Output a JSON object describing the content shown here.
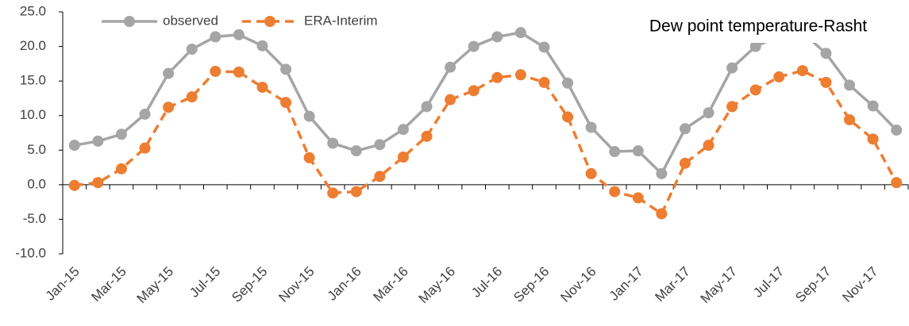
{
  "chart_data": {
    "type": "line",
    "title": "Dew point temperature-Rasht",
    "categories": [
      "Jan-15",
      null,
      "Mar-15",
      null,
      "May-15",
      null,
      "Jul-15",
      null,
      "Sep-15",
      null,
      "Nov-15",
      null,
      "Jan-16",
      null,
      "Mar-16",
      null,
      "May-16",
      null,
      "Jul-16",
      null,
      "Sep-16",
      null,
      "Nov-16",
      null,
      "Jan-17",
      null,
      "Mar-17",
      null,
      "May-17",
      null,
      "Jul-17",
      null,
      "Sep-17",
      null,
      "Nov-17",
      null
    ],
    "series": [
      {
        "name": "observed",
        "color": "#a5a5a5",
        "dashed": false,
        "values": [
          5.7,
          6.3,
          7.3,
          10.2,
          16.1,
          19.6,
          21.4,
          21.7,
          20.1,
          16.7,
          9.9,
          6.0,
          4.9,
          5.8,
          8.0,
          11.3,
          17.0,
          20.0,
          21.4,
          22.0,
          19.9,
          14.7,
          8.3,
          4.8,
          4.9,
          1.6,
          8.1,
          10.4,
          16.9,
          20.0,
          21.5,
          22.0,
          19.0,
          14.4,
          11.4,
          7.9
        ]
      },
      {
        "name": "ERA-Interim",
        "color": "#ed7d31",
        "dashed": true,
        "values": [
          -0.1,
          0.3,
          2.3,
          5.3,
          11.2,
          12.7,
          16.4,
          16.3,
          14.1,
          11.9,
          3.9,
          -1.2,
          -1.0,
          1.2,
          4.0,
          7.0,
          12.3,
          13.6,
          15.5,
          15.9,
          14.8,
          9.8,
          1.6,
          -1.0,
          -1.9,
          -4.2,
          3.1,
          5.7,
          11.3,
          13.7,
          15.6,
          16.5,
          14.8,
          9.4,
          6.6,
          0.3
        ]
      }
    ],
    "ylim": [
      -10,
      25
    ],
    "yticks": [
      {
        "value": -10,
        "label": "-10.0"
      },
      {
        "value": -5,
        "label": "-5.0"
      },
      {
        "value": 0,
        "label": "0.0"
      },
      {
        "value": 5,
        "label": "5.0"
      },
      {
        "value": 10,
        "label": "10.0"
      },
      {
        "value": 15,
        "label": "15.0"
      },
      {
        "value": 20,
        "label": "20.0"
      },
      {
        "value": 25,
        "label": "25.0"
      }
    ],
    "grid": false
  }
}
